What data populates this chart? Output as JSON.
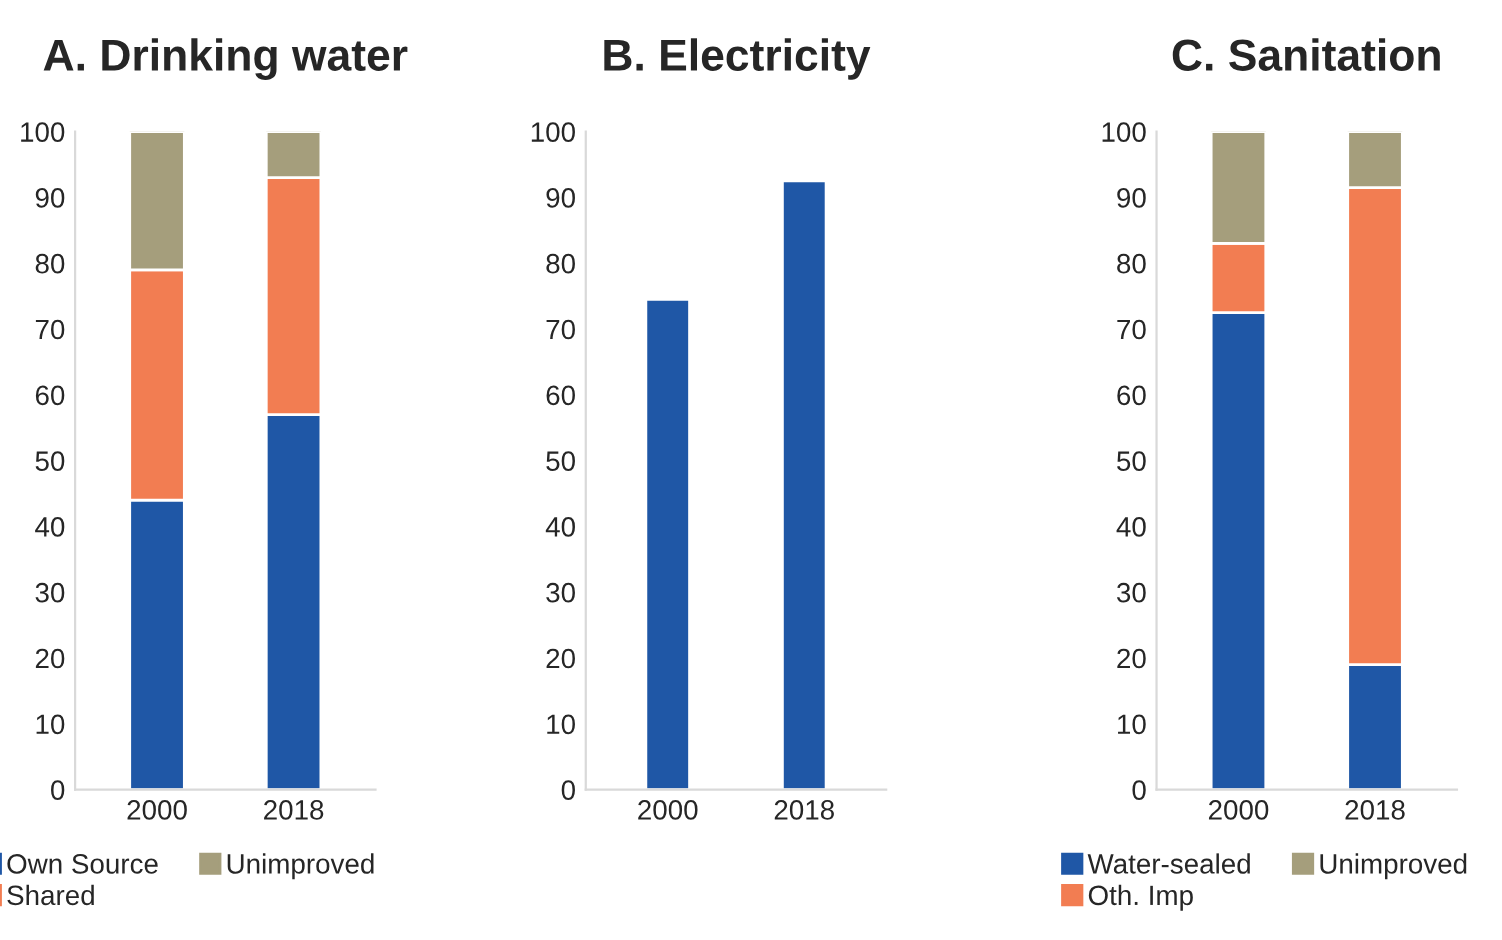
{
  "chart_data": [
    {
      "type": "bar",
      "title": "A. Drinking water",
      "categories": [
        "2000",
        "2018"
      ],
      "stacked": true,
      "ylim": [
        0,
        100
      ],
      "yticks": [
        0,
        10,
        20,
        30,
        40,
        50,
        60,
        70,
        80,
        90,
        100
      ],
      "grid": false,
      "legend": "bottom",
      "series": [
        {
          "name": "Own Source",
          "color": "#1f57a6",
          "values": [
            44,
            57
          ]
        },
        {
          "name": "Shared",
          "color": "#f27d52",
          "values": [
            35,
            36
          ]
        },
        {
          "name": "Unimproved",
          "color": "#a59e7c",
          "values": [
            21,
            7
          ]
        }
      ]
    },
    {
      "type": "bar",
      "title": "B. Electricity",
      "categories": [
        "2000",
        "2018"
      ],
      "ylim": [
        0,
        100
      ],
      "yticks": [
        0,
        10,
        20,
        30,
        40,
        50,
        60,
        70,
        80,
        90,
        100
      ],
      "grid": false,
      "series": [
        {
          "color": "#1f57a6",
          "values": [
            74.5,
            92.5
          ]
        }
      ]
    },
    {
      "type": "bar",
      "title": "C. Sanitation",
      "categories": [
        "2000",
        "2018"
      ],
      "stacked": true,
      "ylim": [
        0,
        100
      ],
      "yticks": [
        0,
        10,
        20,
        30,
        40,
        50,
        60,
        70,
        80,
        90,
        100
      ],
      "grid": false,
      "legend": "bottom",
      "series": [
        {
          "name": "Water-sealed",
          "color": "#1f57a6",
          "values": [
            72.5,
            19
          ]
        },
        {
          "name": "Oth. Imp",
          "color": "#f27d52",
          "values": [
            10.5,
            72.5
          ]
        },
        {
          "name": "Unimproved",
          "color": "#a59e7c",
          "values": [
            17,
            8.5
          ]
        }
      ]
    }
  ]
}
